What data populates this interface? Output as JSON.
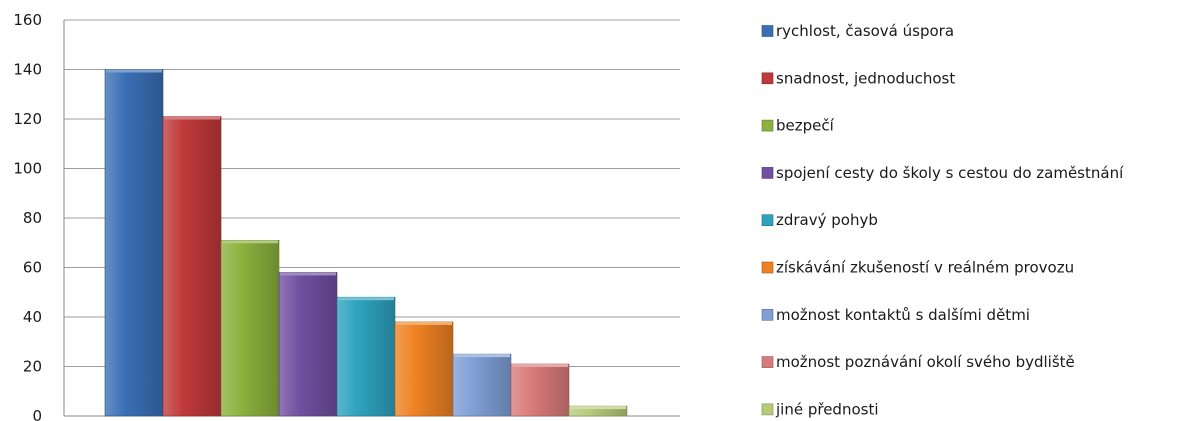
{
  "chart_data": {
    "type": "bar",
    "title": "",
    "xlabel": "",
    "ylabel": "",
    "ylim": [
      0,
      160
    ],
    "yticks": [
      0,
      20,
      40,
      60,
      80,
      100,
      120,
      140,
      160
    ],
    "grid": true,
    "legend_position": "right",
    "categories": [
      "rychlost, časová úspora",
      "snadnost, jednoduchost",
      "bezpečí",
      "spojení cesty do školy s cestou do zaměstnání",
      "zdravý pohyb",
      "získávání zkušeností v reálném provozu",
      "možnost kontaktů s dalšími dětmi",
      "možnost poznávání  okolí svého bydliště",
      "jiné přednosti"
    ],
    "values": [
      140,
      121,
      71,
      58,
      48,
      38,
      25,
      21,
      4
    ],
    "colors": [
      "#3a6fb5",
      "#c0393a",
      "#8cb13d",
      "#7050a0",
      "#2ea3bf",
      "#ee8222",
      "#7f9fd6",
      "#d97b7a",
      "#b6cb7a"
    ]
  }
}
